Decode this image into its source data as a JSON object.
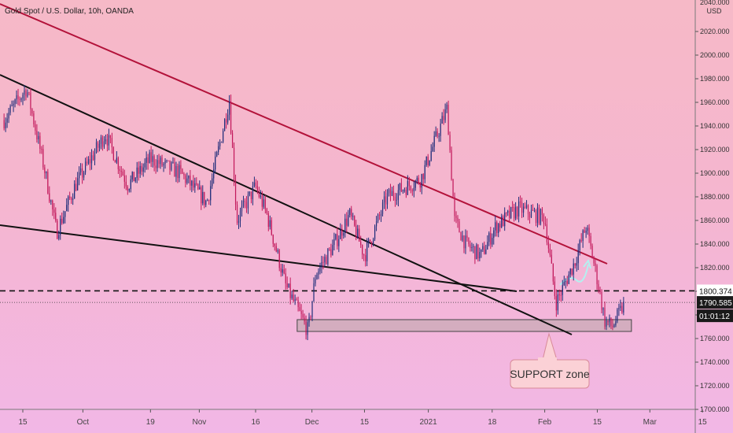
{
  "header": {
    "title": "Gold Spot / U.S. Dollar, 10h, OANDA",
    "currency": "USD"
  },
  "chart_data": {
    "type": "candlestick",
    "title": "Gold Spot / U.S. Dollar, 10h, OANDA",
    "ylabel": "USD",
    "ylim": [
      1700,
      2040
    ],
    "y_ticks": [
      1700,
      1720,
      1740,
      1760,
      1780,
      1800,
      1820,
      1840,
      1860,
      1880,
      1900,
      1920,
      1940,
      1960,
      1980,
      2000,
      2020,
      2040
    ],
    "y_tick_labels": [
      "1700.000",
      "1720.000",
      "1740.000",
      "1760.000",
      "1780.000",
      "1800.000",
      "1820.000",
      "1840.000",
      "1860.000",
      "1880.000",
      "1900.000",
      "1920.000",
      "1940.000",
      "1960.000",
      "1980.000",
      "2000.000",
      "2020.000",
      "2040.000"
    ],
    "x_tick_labels": [
      "15",
      "Oct",
      "19",
      "Nov",
      "16",
      "Dec",
      "15",
      "2021",
      "18",
      "Feb",
      "15",
      "Mar",
      "15"
    ],
    "price_path": [
      [
        "2020-09-10",
        1945
      ],
      [
        "2020-09-16",
        1972
      ],
      [
        "2020-09-21",
        1900
      ],
      [
        "2020-09-24",
        1850
      ],
      [
        "2020-09-29",
        1890
      ],
      [
        "2020-10-07",
        1933
      ],
      [
        "2020-10-13",
        1890
      ],
      [
        "2020-10-19",
        1912
      ],
      [
        "2020-10-27",
        1900
      ],
      [
        "2020-11-03",
        1875
      ],
      [
        "2020-11-09",
        1962
      ],
      [
        "2020-11-11",
        1860
      ],
      [
        "2020-11-16",
        1889
      ],
      [
        "2020-11-19",
        1865
      ],
      [
        "2020-11-24",
        1805
      ],
      [
        "2020-11-30",
        1766
      ],
      [
        "2020-12-02",
        1815
      ],
      [
        "2020-12-07",
        1840
      ],
      [
        "2020-12-11",
        1865
      ],
      [
        "2020-12-15",
        1830
      ],
      [
        "2020-12-21",
        1880
      ],
      [
        "2020-12-30",
        1895
      ],
      [
        "2021-01-06",
        1955
      ],
      [
        "2021-01-08",
        1860
      ],
      [
        "2021-01-11",
        1840
      ],
      [
        "2021-01-15",
        1830
      ],
      [
        "2021-01-19",
        1855
      ],
      [
        "2021-01-25",
        1870
      ],
      [
        "2021-02-01",
        1862
      ],
      [
        "2021-02-04",
        1790
      ],
      [
        "2021-02-09",
        1825
      ],
      [
        "2021-02-12",
        1855
      ],
      [
        "2021-02-15",
        1810
      ],
      [
        "2021-02-17",
        1775
      ],
      [
        "2021-02-19",
        1770
      ],
      [
        "2021-02-22",
        1788
      ]
    ],
    "levels": {
      "current_price": "1790.585",
      "marked_level": "1800.374",
      "countdown": "01:01:12"
    },
    "support_zone": {
      "from": "2020-11-30",
      "to": "2021-02-22",
      "low": 1766,
      "high": 1776
    },
    "annotations": {
      "callout": "SUPPORT zone"
    },
    "colors": {
      "up": "#1f2d7a",
      "down": "#c2185b",
      "resistance": "#b3123a",
      "trendline": "#111111",
      "zone_fill": "#c9a9b5"
    },
    "grid": false
  }
}
